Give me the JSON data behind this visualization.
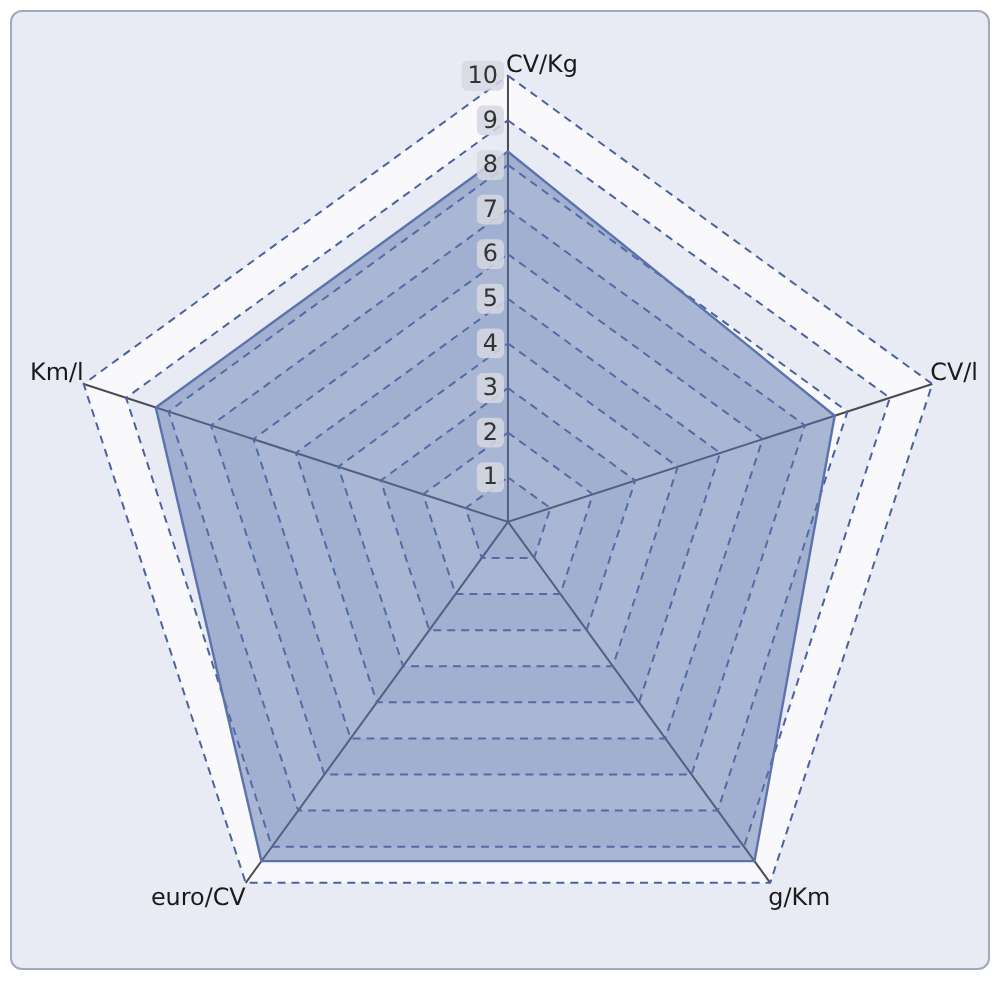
{
  "chart_data": {
    "type": "radar",
    "categories": [
      "CV/Kg",
      "CV/l",
      "g/Km",
      "euro/CV",
      "Km/l"
    ],
    "series": [
      {
        "color": "#5a73ad",
        "values": [
          8.3,
          7.7,
          9.4,
          9.4,
          8.3
        ]
      }
    ],
    "ylim": [
      0,
      10
    ],
    "yticks": [
      1,
      2,
      3,
      4,
      5,
      6,
      7,
      8,
      9,
      10
    ],
    "grid": true
  }
}
